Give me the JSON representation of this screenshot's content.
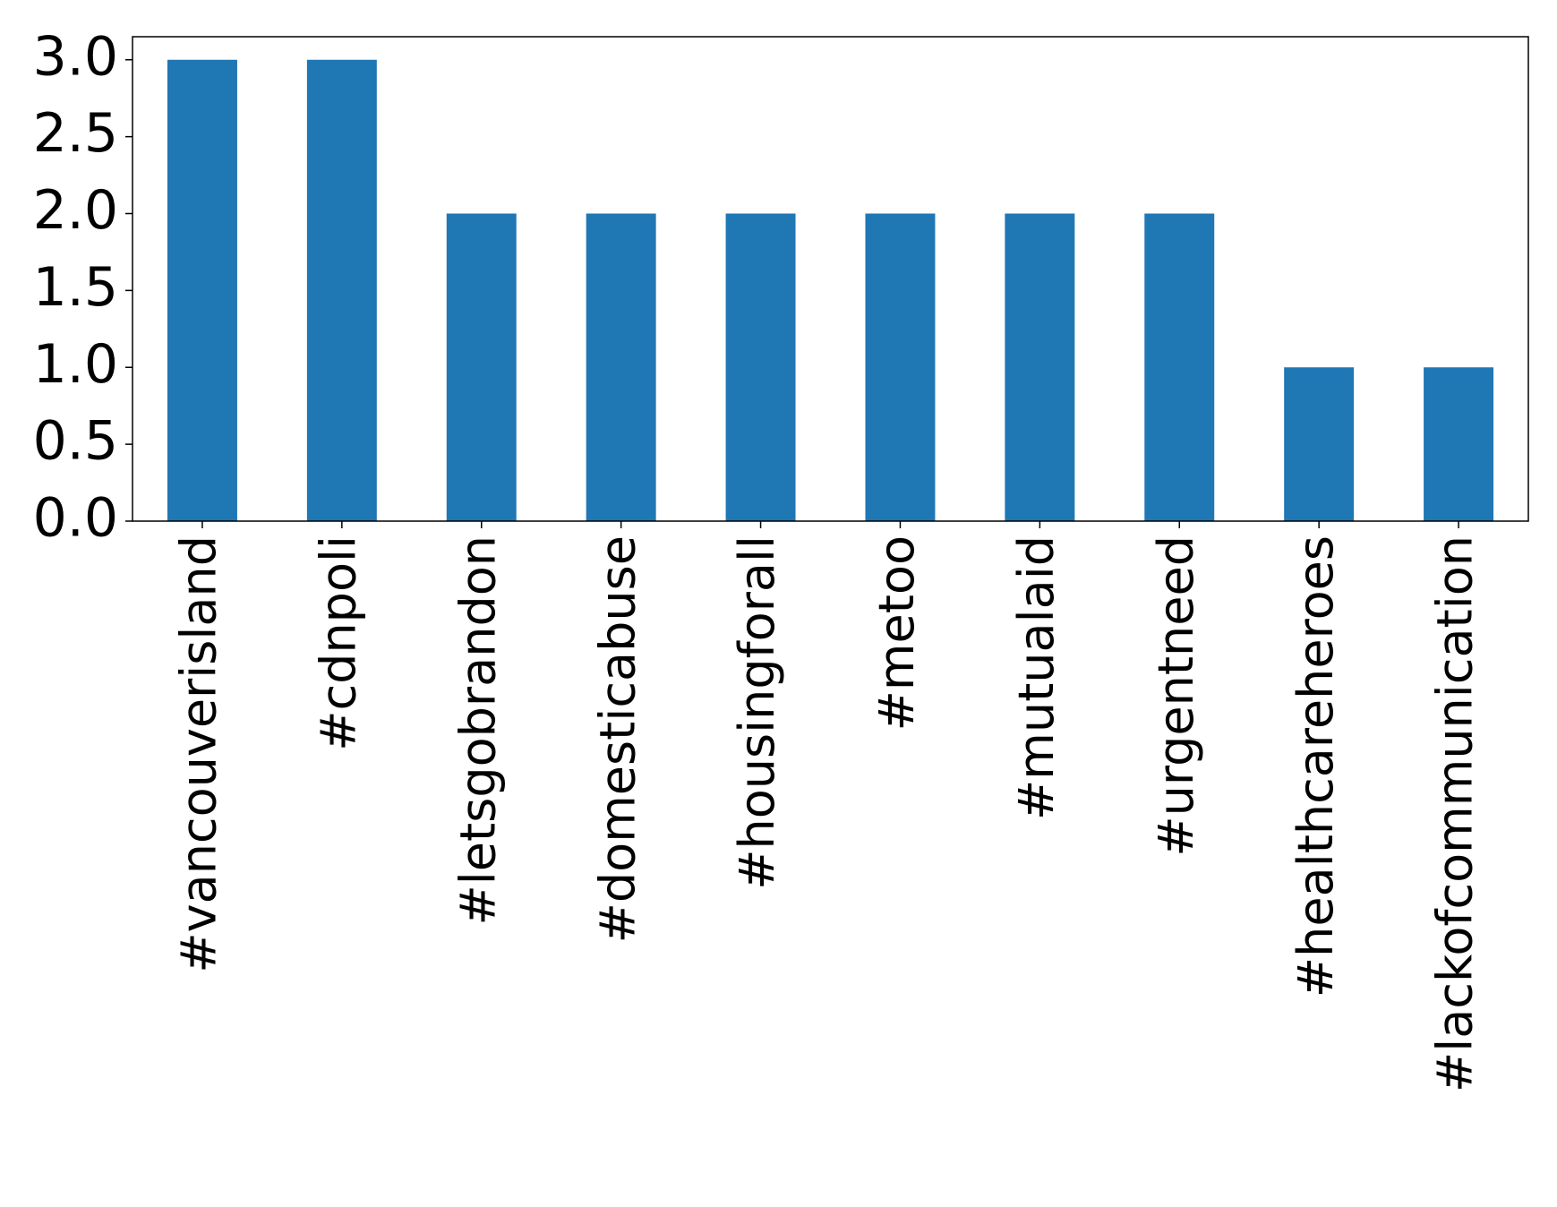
{
  "chart_data": {
    "type": "bar",
    "categories": [
      "#vancouverisland",
      "#cdnpoli",
      "#letsgobrandon",
      "#domesticabuse",
      "#housingforall",
      "#metoo",
      "#mutualaid",
      "#urgentneed",
      "#healthcareheroes",
      "#lackofcommunication"
    ],
    "values": [
      3,
      3,
      2,
      2,
      2,
      2,
      2,
      2,
      1,
      1
    ],
    "color": "#1f77b4",
    "ylim": [
      0,
      3.15
    ],
    "yticks": [
      {
        "value": 0,
        "label": "0.0"
      },
      0.5,
      {
        "value": 1,
        "label": "1.0"
      },
      1.5,
      {
        "value": 2,
        "label": "2.0"
      },
      2.5,
      {
        "value": 3,
        "label": "3.0"
      }
    ],
    "grid": false
  }
}
